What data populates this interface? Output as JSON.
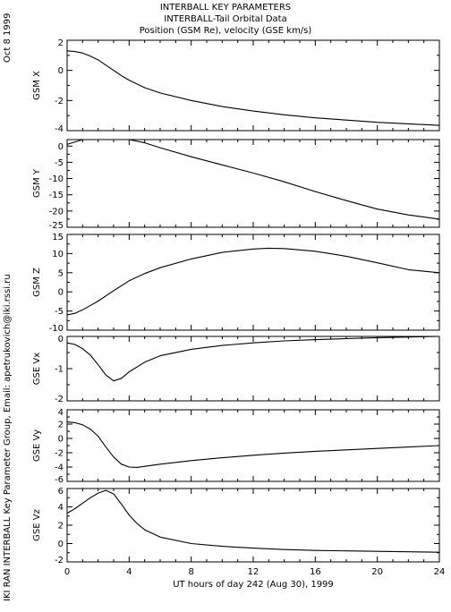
{
  "header": {
    "title": "INTERBALL KEY PARAMETERS",
    "subtitle": "INTERBALL-Tail Orbital Data",
    "subtitle2": "Position (GSM Re), velocity (GSE km/s)",
    "date": "Oct  8 1999"
  },
  "sidebar_credit": "IKI RAN INTERBALL Key Parameter Group, Email: apetrukovich@iki.rssi.ru",
  "colors": {
    "line": "#000000",
    "background": "#ffffff"
  },
  "chart_data": {
    "type": "line",
    "xlabel": "UT hours of day 242 (Aug 30), 1999",
    "xlim": [
      0,
      24
    ],
    "xticks": [
      0,
      4,
      8,
      12,
      16,
      20,
      24
    ],
    "panels": [
      {
        "name": "GSM X",
        "ylim": [
          -4,
          2
        ],
        "yticks": [
          -4,
          -2,
          0,
          2
        ],
        "x": [
          0,
          0.5,
          1,
          1.5,
          2,
          2.5,
          3,
          3.5,
          4,
          5,
          6,
          8,
          10,
          12,
          14,
          16,
          18,
          20,
          22,
          24
        ],
        "y": [
          1.3,
          1.25,
          1.15,
          0.95,
          0.7,
          0.35,
          0.0,
          -0.35,
          -0.65,
          -1.15,
          -1.5,
          -2.0,
          -2.4,
          -2.7,
          -2.95,
          -3.15,
          -3.3,
          -3.45,
          -3.55,
          -3.65
        ]
      },
      {
        "name": "GSM Y",
        "ylim": [
          -25,
          2
        ],
        "yticks": [
          -25,
          -20,
          -15,
          -10,
          -5,
          0
        ],
        "x": [
          0,
          1,
          2,
          3,
          3.5,
          4,
          5,
          6,
          8,
          10,
          12,
          14,
          16,
          18,
          20,
          22,
          24
        ],
        "y": [
          0.5,
          2.0,
          3.0,
          3.3,
          3.0,
          2.4,
          1.0,
          -0.5,
          -3.3,
          -5.8,
          -8.3,
          -11.0,
          -14.0,
          -16.8,
          -19.4,
          -21.2,
          -22.5
        ]
      },
      {
        "name": "GSM Z",
        "ylim": [
          -10,
          15
        ],
        "yticks": [
          -10,
          -5,
          0,
          5,
          10,
          15
        ],
        "x": [
          0,
          0.5,
          1,
          2,
          3,
          4,
          5,
          6,
          8,
          10,
          12,
          13,
          14,
          16,
          18,
          20,
          22,
          24
        ],
        "y": [
          -6.0,
          -5.6,
          -4.7,
          -2.4,
          0.3,
          2.9,
          4.8,
          6.3,
          8.6,
          10.3,
          11.2,
          11.4,
          11.3,
          10.6,
          9.3,
          7.6,
          5.8,
          5.0
        ]
      },
      {
        "name": "GSE Vx",
        "ylim": [
          -2,
          0
        ],
        "yticks": [
          -2,
          -1,
          0
        ],
        "x": [
          0,
          0.5,
          1,
          1.5,
          2,
          2.5,
          3,
          3.5,
          4,
          5,
          6,
          8,
          10,
          12,
          14,
          16,
          18,
          20,
          22,
          24
        ],
        "y": [
          -0.2,
          -0.25,
          -0.38,
          -0.58,
          -0.88,
          -1.2,
          -1.38,
          -1.3,
          -1.1,
          -0.8,
          -0.6,
          -0.4,
          -0.28,
          -0.2,
          -0.14,
          -0.1,
          -0.07,
          -0.04,
          -0.02,
          0.0
        ]
      },
      {
        "name": "GSE Vy",
        "ylim": [
          -6,
          4
        ],
        "yticks": [
          -6,
          -4,
          -2,
          0,
          2,
          4
        ],
        "x": [
          0,
          0.5,
          1,
          1.5,
          2,
          2.5,
          3,
          3.5,
          4,
          4.5,
          5,
          6,
          8,
          10,
          12,
          14,
          16,
          18,
          20,
          22,
          24
        ],
        "y": [
          2.3,
          2.2,
          1.9,
          1.3,
          0.3,
          -1.2,
          -2.6,
          -3.6,
          -4.0,
          -4.05,
          -3.9,
          -3.6,
          -3.1,
          -2.7,
          -2.35,
          -2.05,
          -1.8,
          -1.6,
          -1.4,
          -1.2,
          -1.0
        ]
      },
      {
        "name": "GSE Vz",
        "ylim": [
          -2,
          6
        ],
        "yticks": [
          -2,
          0,
          2,
          4,
          6
        ],
        "x": [
          0,
          0.5,
          1,
          1.5,
          2,
          2.5,
          3,
          3.5,
          4,
          4.5,
          5,
          6,
          8,
          10,
          12,
          14,
          16,
          18,
          20,
          22,
          24
        ],
        "y": [
          3.3,
          3.8,
          4.4,
          5.0,
          5.5,
          5.8,
          5.4,
          4.3,
          3.1,
          2.2,
          1.5,
          0.7,
          0.0,
          -0.3,
          -0.5,
          -0.65,
          -0.75,
          -0.8,
          -0.85,
          -0.9,
          -0.95
        ]
      }
    ]
  }
}
